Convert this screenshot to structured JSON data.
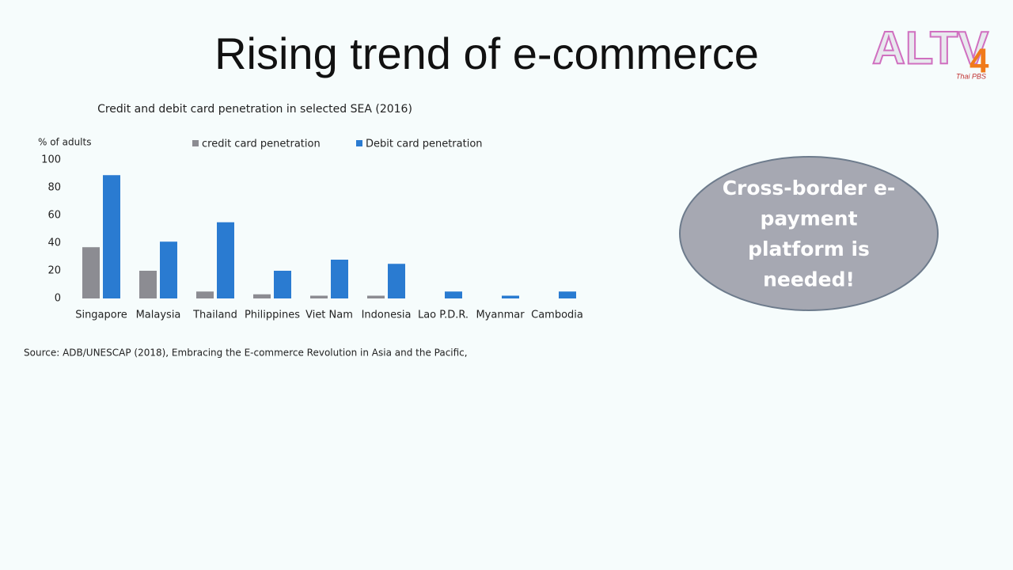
{
  "slide_title": "Rising trend of e-commerce",
  "logo": {
    "text": "ALTV",
    "number": "4",
    "sub": "Thai PBS"
  },
  "chart_data": {
    "type": "bar",
    "title": "Credit and debit card penetration in selected SEA (2016)",
    "y_label": "% of adults",
    "categories": [
      "Singapore",
      "Malaysia",
      "Thailand",
      "Philippines",
      "Viet Nam",
      "Indonesia",
      "Lao P.D.R.",
      "Myanmar",
      "Cambodia"
    ],
    "series": [
      {
        "name": "credit card penetration",
        "color": "#8c8c92",
        "values": [
          37,
          20,
          5,
          3,
          2,
          2,
          null,
          null,
          null
        ]
      },
      {
        "name": "Debit card penetration",
        "color": "#2a7bd1",
        "values": [
          89,
          41,
          55,
          20,
          28,
          25,
          5,
          2,
          5
        ]
      }
    ],
    "ylim": [
      0,
      100
    ],
    "yticks": [
      0,
      20,
      40,
      60,
      80,
      100
    ],
    "grid": false
  },
  "source": "Source: ADB/UNESCAP (2018), Embracing the E-commerce Revolution in Asia and the Pacific,",
  "callout": {
    "lines": [
      "Cross-border e-",
      "payment",
      "platform is",
      "needed!"
    ]
  }
}
